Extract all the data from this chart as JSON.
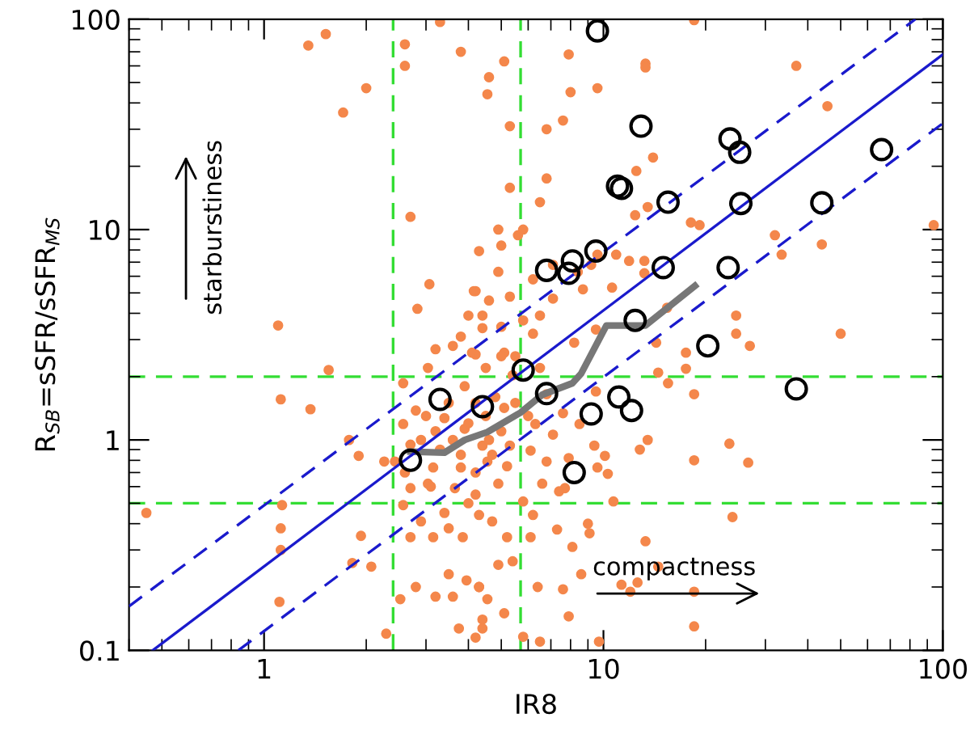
{
  "chart_data": {
    "type": "scatter",
    "xlabel": "IR8",
    "ylabel": "R$_{SB}$=sSFR/sSFR$_{MS}$",
    "log": "xy",
    "xlim": [
      0.4,
      100
    ],
    "ylim": [
      0.1,
      100
    ],
    "xticks": [
      1,
      10,
      100
    ],
    "yticks": [
      0.1,
      1,
      10,
      100
    ],
    "grid": false,
    "legend": false,
    "annotations": [
      "starburstiness",
      "compactness"
    ],
    "ref_lines": [
      {
        "axis": "x",
        "value": 2.4,
        "color": "#33dd33",
        "line_style": "dashed"
      },
      {
        "axis": "x",
        "value": 5.7,
        "color": "#33dd33",
        "line_style": "dashed"
      },
      {
        "axis": "y",
        "value": 2,
        "color": "#33dd33",
        "line_style": "dashed"
      },
      {
        "axis": "y",
        "value": 0.5,
        "color": "#33dd33",
        "line_style": "dashed"
      }
    ],
    "series": [
      {
        "marker": "circle",
        "color": "#f4874b",
        "x": [
          1.1,
          1.35,
          1.52,
          1.71,
          2.0,
          2.6,
          2.6,
          3.3,
          3.8,
          2.7,
          3.07,
          2.83,
          4.3,
          4.2,
          4.0,
          3.8,
          4.4,
          3.2,
          3.6,
          4.2,
          1.55,
          18.5,
          37,
          45.7,
          94,
          7.9,
          9.6,
          8.0,
          5.1,
          4.6,
          4.55,
          13.3,
          13.3,
          5.3,
          6.8,
          7.6,
          14,
          12.5,
          5.3,
          6.8,
          6.5,
          13.5,
          12.4,
          18.1,
          19.2,
          32,
          33.5,
          44,
          50,
          24.6,
          24.6,
          27,
          5.0,
          4.9,
          5.6,
          5.8,
          9.6,
          10.9,
          11.9,
          13.2,
          13.2,
          9.2,
          8.4,
          7.1,
          7.1,
          6.2,
          8.7,
          10.6,
          4.9,
          4.15,
          4.6,
          5.3,
          6.5,
          6.2,
          8.2,
          9.5,
          15.4,
          14.3,
          17.5,
          5.0,
          4.4,
          5.1,
          5.5,
          5.8,
          1.12,
          1.37,
          1.78,
          1.9,
          0.45,
          1.13,
          1.12,
          1.12,
          1.11,
          1.93,
          1.82,
          2.07,
          2.29,
          2.52,
          2.8,
          3.2,
          3.6,
          3.75,
          4.2,
          4.4,
          3.5,
          3.95,
          4.3,
          2.7,
          2.9,
          3.15,
          3.5,
          3.85,
          4.3,
          2.57,
          2.7,
          3.04,
          3.65,
          4.2,
          2.57,
          2.8,
          2.57,
          3.04,
          3.4,
          3.9,
          4.4,
          3.15,
          3.8,
          4.2,
          2.43,
          2.26,
          18.5,
          14.5,
          17.5,
          15.5,
          23.5,
          26.7,
          18.5,
          13.5,
          12.8,
          24,
          13.3,
          14.5,
          18.5,
          18.5,
          11.3,
          12,
          12.6,
          10.7,
          10.3,
          9.6,
          10.1,
          9.4,
          7.9,
          7.7,
          9.0,
          9.1,
          8.1,
          7.3,
          8.6,
          6.4,
          7.6,
          7.9,
          6.5,
          9.7,
          5.8,
          5.1,
          4.55,
          4.3,
          4.4,
          4.9,
          5.4,
          5.2,
          6.1,
          4.7,
          6.2,
          5.8,
          6.6,
          7.4,
          6.8,
          6.1,
          5.3,
          4.55,
          4.9,
          7.1,
          8.5,
          9.5,
          7.6,
          6.3,
          5.1,
          6.8,
          5.4,
          2.9,
          3.2,
          3.6,
          3.3,
          4.0,
          4.5,
          4.8,
          3.5,
          3.0,
          4.2,
          5.0,
          5.5,
          2.7,
          3.8,
          4.6,
          3.1,
          4.0,
          3.4,
          2.6,
          5.2,
          4.7,
          6.0,
          6.5,
          5.0,
          4.5,
          3.9,
          4.1
        ],
        "values": [
          3.5,
          75,
          85,
          36,
          47,
          76,
          60,
          97,
          70,
          11.5,
          5.5,
          4.2,
          7.9,
          5.1,
          3.9,
          3.1,
          3.4,
          2.7,
          2.8,
          2.55,
          2.15,
          99,
          60,
          38.6,
          10.5,
          68,
          47,
          45,
          63,
          53,
          44,
          61.5,
          59,
          31,
          30,
          33,
          22,
          19,
          15.8,
          17.5,
          13.5,
          12.8,
          11.7,
          10.8,
          10.5,
          9.4,
          7.6,
          8.5,
          3.2,
          3.9,
          3.2,
          2.8,
          8.4,
          10,
          9.4,
          10,
          7.6,
          7.6,
          7.1,
          7.1,
          6.2,
          6.8,
          6.3,
          6.8,
          4.7,
          5.8,
          5.2,
          5.3,
          6.3,
          5.1,
          4.6,
          4.8,
          3.9,
          3.2,
          2.9,
          3.35,
          4.25,
          2.9,
          2.6,
          3.45,
          3.9,
          2.6,
          2.5,
          3.7,
          1.56,
          1.4,
          1.0,
          0.84,
          0.45,
          0.49,
          0.38,
          0.3,
          0.17,
          0.35,
          0.26,
          0.25,
          0.12,
          0.175,
          0.2,
          0.18,
          0.18,
          0.127,
          0.115,
          0.14,
          0.23,
          0.215,
          0.2,
          0.345,
          0.41,
          0.345,
          0.38,
          0.345,
          0.44,
          0.49,
          0.59,
          0.62,
          0.59,
          0.55,
          1.19,
          1.38,
          1.86,
          2.2,
          1.27,
          1.13,
          0.94,
          0.74,
          0.74,
          0.7,
          0.79,
          0.79,
          1.65,
          2.09,
          2.18,
          1.86,
          0.96,
          0.78,
          0.8,
          1.0,
          0.9,
          0.43,
          0.33,
          0.25,
          0.19,
          0.13,
          0.205,
          0.19,
          0.21,
          0.51,
          0.69,
          0.74,
          0.84,
          0.94,
          0.82,
          0.59,
          0.4,
          0.36,
          0.31,
          0.375,
          0.23,
          0.2,
          0.195,
          0.145,
          0.11,
          0.11,
          0.116,
          0.15,
          0.175,
          0.2,
          0.127,
          0.255,
          0.265,
          0.345,
          0.345,
          0.41,
          0.44,
          0.51,
          0.62,
          0.57,
          0.79,
          0.89,
          0.94,
          0.79,
          0.62,
          1.06,
          1.19,
          1.7,
          1.34,
          1.19,
          1.42,
          1.65,
          2.03,
          1.0,
          1.1,
          1.0,
          0.9,
          1.2,
          1.3,
          1.6,
          1.5,
          1.3,
          1.5,
          1.1,
          1.5,
          0.95,
          0.85,
          1.0,
          0.6,
          0.5,
          0.45,
          0.7,
          0.75,
          0.85,
          1.3,
          2.2,
          2.5,
          2.2,
          1.8,
          2.6
        ]
      },
      {
        "marker": "circle",
        "color": "#000000",
        "x": [
          9.6,
          12.9,
          23.6,
          25.2,
          66,
          11.0,
          11.3,
          15.5,
          25.4,
          44,
          9.5,
          8.1,
          7.9,
          6.8,
          15.0,
          23.3,
          12.4,
          20.3,
          5.8,
          6.8,
          37,
          3.3,
          4.4,
          2.7,
          11.1,
          12.1,
          9.2,
          8.2
        ],
        "values": [
          88,
          31,
          27,
          23.3,
          24,
          16.1,
          15.7,
          13.5,
          13.3,
          13.4,
          7.9,
          7.1,
          6.2,
          6.4,
          6.6,
          6.6,
          3.7,
          2.8,
          2.15,
          1.66,
          1.75,
          1.56,
          1.44,
          0.8,
          1.6,
          1.38,
          1.33,
          0.7
        ]
      },
      {
        "type": "line",
        "color": "#777777",
        "x": [
          2.7,
          3.4,
          3.9,
          4.55,
          5.7,
          6.6,
          8.1,
          8.6,
          10.2,
          13.3,
          18.6
        ],
        "values": [
          0.88,
          0.87,
          1.0,
          1.09,
          1.35,
          1.64,
          1.86,
          2.07,
          3.5,
          3.5,
          5.4
        ]
      },
      {
        "type": "line",
        "color": "#1a1acc",
        "line_style": "solid",
        "x": [
          0.47,
          100
        ],
        "values": [
          0.1,
          68
        ]
      },
      {
        "type": "line",
        "color": "#1a1acc",
        "line_style": "dashed",
        "x": [
          0.4,
          83
        ],
        "values": [
          0.162,
          100
        ]
      },
      {
        "type": "line",
        "color": "#1a1acc",
        "line_style": "dashed",
        "x": [
          0.84,
          100
        ],
        "values": [
          0.1,
          32
        ]
      }
    ]
  }
}
